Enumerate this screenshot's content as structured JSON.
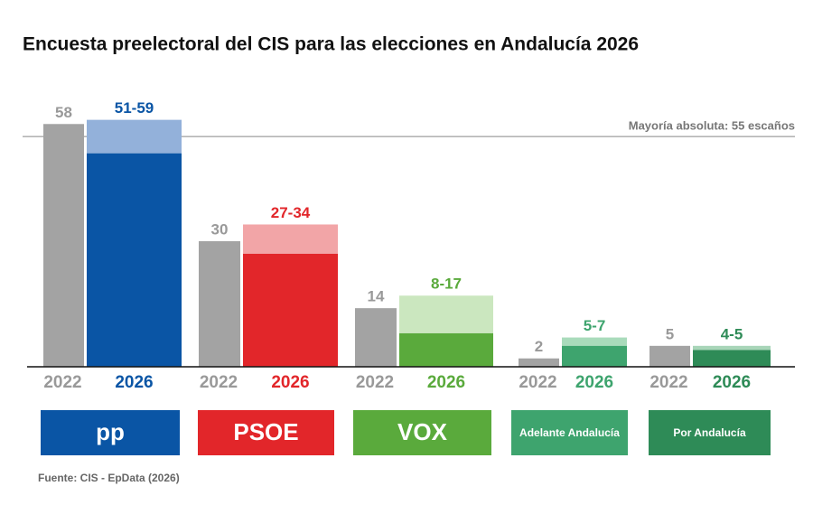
{
  "chart_data": {
    "type": "range_bar",
    "title": "Encuesta preelectoral del CIS para las elecciones en Andalucía 2026",
    "categories": [
      "pp",
      "PSOE",
      "VOX",
      "Adelante Andalucía",
      "Por Andalucía"
    ],
    "category_colors": [
      "#0a55a5",
      "#e2262a",
      "#5aaa3c",
      "#3ea46e",
      "#2e8b57"
    ],
    "series": [
      {
        "name": "2022",
        "color": "#a3a3a3",
        "values": [
          58,
          30,
          14,
          2,
          5
        ]
      },
      {
        "name": "2026",
        "colors": [
          "#0a55a5",
          "#e2262a",
          "#5aaa3c",
          "#3ea46e",
          "#2e8b57"
        ],
        "light_colors": [
          "#93b1da",
          "#f2a5a7",
          "#cbe7bf",
          "#a9dbbb",
          "#a8d5b8"
        ],
        "low": [
          51,
          27,
          8,
          5,
          4
        ],
        "high": [
          59,
          34,
          17,
          7,
          5
        ],
        "value_labels": [
          "51-59",
          "27-34",
          "8-17",
          "5-7",
          "4-5"
        ]
      }
    ],
    "ylim": [
      0,
      60
    ],
    "reference_line": {
      "value": 55,
      "label": "Mayoría absoluta: 55 escaños"
    },
    "source": "Fuente: CIS - EpData (2026)"
  }
}
